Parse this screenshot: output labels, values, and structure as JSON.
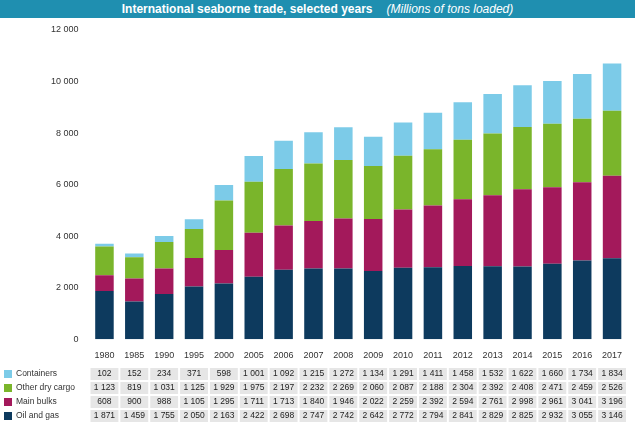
{
  "chart_data": {
    "type": "bar",
    "title": "International seaborne trade, selected years",
    "subtitle": "(Millions of tons loaded)",
    "stacked": true,
    "grid": false,
    "categories": [
      "1980",
      "1985",
      "1990",
      "1995",
      "2000",
      "2005",
      "2006",
      "2007",
      "2008",
      "2009",
      "2010",
      "2011",
      "2012",
      "2013",
      "2014",
      "2015",
      "2016",
      "2017"
    ],
    "ylim": [
      0,
      12000
    ],
    "yticks": [
      0,
      {
        "value": 2000,
        "label": "2 000"
      },
      {
        "value": 4000,
        "label": "4 000"
      },
      {
        "value": 6000,
        "label": "6 000"
      },
      {
        "value": 8000,
        "label": "8 000"
      },
      {
        "value": 10000,
        "label": "10 000"
      },
      {
        "value": 12000,
        "label": "12 000"
      }
    ],
    "series": [
      {
        "name": "Oil and gas",
        "color": "#0d3a5e",
        "values": [
          1871,
          1459,
          1755,
          2050,
          2163,
          2422,
          2698,
          2747,
          2742,
          2642,
          2772,
          2794,
          2841,
          2829,
          2825,
          2932,
          3055,
          3146
        ],
        "value_labels": [
          "1 871",
          "1 459",
          "1 755",
          "2 050",
          "2 163",
          "2 422",
          "2 698",
          "2 747",
          "2 742",
          "2 642",
          "2 772",
          "2 794",
          "2 841",
          "2 829",
          "2 825",
          "2 932",
          "3 055",
          "3 146"
        ]
      },
      {
        "name": "Main bulks",
        "color": "#a3195b",
        "values": [
          608,
          900,
          988,
          1105,
          1295,
          1711,
          1713,
          1840,
          1946,
          2022,
          2259,
          2392,
          2594,
          2761,
          2998,
          2961,
          3041,
          3196
        ],
        "value_labels": [
          "608",
          "900",
          "988",
          "1 105",
          "1 295",
          "1 711",
          "1 713",
          "1 840",
          "1 946",
          "2 022",
          "2 259",
          "2 392",
          "2 594",
          "2 761",
          "2 998",
          "2 961",
          "3 041",
          "3 196"
        ]
      },
      {
        "name": "Other dry cargo",
        "color": "#7ab52b",
        "values": [
          1123,
          819,
          1031,
          1125,
          1929,
          1975,
          2197,
          2232,
          2269,
          2060,
          2087,
          2188,
          2304,
          2392,
          2408,
          2471,
          2459,
          2526
        ],
        "value_labels": [
          "1 123",
          "819",
          "1 031",
          "1 125",
          "1 929",
          "1 975",
          "2 197",
          "2 232",
          "2 269",
          "2 060",
          "2 087",
          "2 188",
          "2 304",
          "2 392",
          "2 408",
          "2 471",
          "2 459",
          "2 526"
        ]
      },
      {
        "name": "Containers",
        "color": "#7ccbe8",
        "values": [
          102,
          152,
          234,
          371,
          598,
          1001,
          1092,
          1215,
          1272,
          1134,
          1291,
          1411,
          1458,
          1532,
          1622,
          1660,
          1734,
          1834
        ],
        "value_labels": [
          "102",
          "152",
          "234",
          "371",
          "598",
          "1 001",
          "1 092",
          "1 215",
          "1 272",
          "1 134",
          "1 291",
          "1 411",
          "1 458",
          "1 532",
          "1 622",
          "1 660",
          "1 734",
          "1 834"
        ]
      }
    ]
  }
}
